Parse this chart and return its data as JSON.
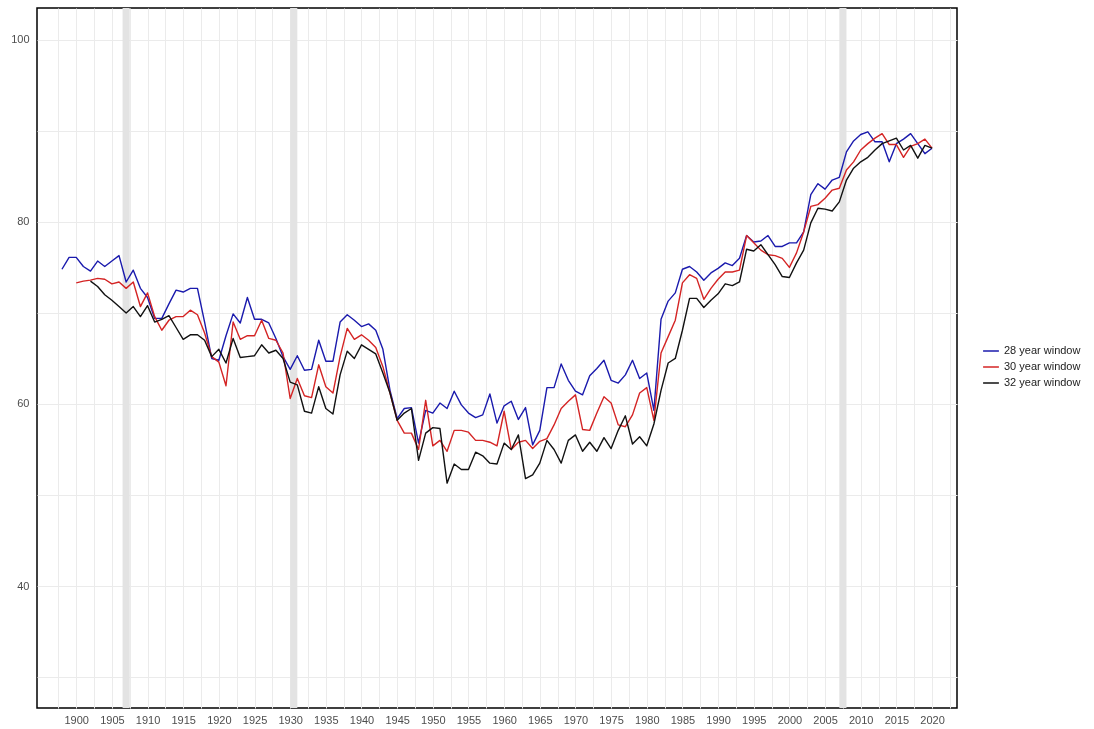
{
  "chart_data": {
    "type": "line",
    "x": [
      1898,
      1899,
      1900,
      1901,
      1902,
      1903,
      1904,
      1905,
      1906,
      1907,
      1908,
      1909,
      1910,
      1911,
      1912,
      1913,
      1914,
      1915,
      1916,
      1917,
      1918,
      1919,
      1920,
      1921,
      1922,
      1923,
      1924,
      1925,
      1926,
      1927,
      1928,
      1929,
      1930,
      1931,
      1932,
      1933,
      1934,
      1935,
      1936,
      1937,
      1938,
      1939,
      1940,
      1941,
      1942,
      1943,
      1944,
      1945,
      1946,
      1947,
      1948,
      1949,
      1950,
      1951,
      1952,
      1953,
      1954,
      1955,
      1956,
      1957,
      1958,
      1959,
      1960,
      1961,
      1962,
      1963,
      1964,
      1965,
      1966,
      1967,
      1968,
      1969,
      1970,
      1971,
      1972,
      1973,
      1974,
      1975,
      1976,
      1977,
      1978,
      1979,
      1980,
      1981,
      1982,
      1983,
      1984,
      1985,
      1986,
      1987,
      1988,
      1989,
      1990,
      1991,
      1992,
      1993,
      1994,
      1995,
      1996,
      1997,
      1998,
      1999,
      2000,
      2001,
      2002,
      2003,
      2004,
      2005,
      2006,
      2007,
      2008,
      2009,
      2010,
      2011,
      2012,
      2013,
      2014,
      2015,
      2016,
      2017,
      2018,
      2019,
      2020
    ],
    "series": [
      {
        "name": "28 year window",
        "color": "#1a1aad",
        "values": [
          74.8,
          76.1,
          76.1,
          75.1,
          74.6,
          75.7,
          75.1,
          75.7,
          76.3,
          73.4,
          74.7,
          72.7,
          71.7,
          69.4,
          69.4,
          71.0,
          72.5,
          72.3,
          72.7,
          72.7,
          69.0,
          65.0,
          64.8,
          67.5,
          69.9,
          68.9,
          71.7,
          69.3,
          69.3,
          68.9,
          67.2,
          65.2,
          63.8,
          65.3,
          63.7,
          63.8,
          67.0,
          64.7,
          64.7,
          69.0,
          69.8,
          69.2,
          68.5,
          68.8,
          68.1,
          66.0,
          61.5,
          58.4,
          59.5,
          59.6,
          55.7,
          59.3,
          59.0,
          60.1,
          59.5,
          61.4,
          59.9,
          59.0,
          58.5,
          58.8,
          61.1,
          57.9,
          59.8,
          60.3,
          58.3,
          59.6,
          55.5,
          57.1,
          61.8,
          61.8,
          64.4,
          62.6,
          61.4,
          61.0,
          63.1,
          63.9,
          64.8,
          62.6,
          62.3,
          63.2,
          64.8,
          62.8,
          63.4,
          59.3,
          69.3,
          71.3,
          72.2,
          74.8,
          75.1,
          74.5,
          73.6,
          74.4,
          74.9,
          75.5,
          75.2,
          76.0,
          78.5,
          77.8,
          77.9,
          78.5,
          77.3,
          77.3,
          77.7,
          77.7,
          78.9,
          83.0,
          84.2,
          83.6,
          84.6,
          84.9,
          87.7,
          88.9,
          89.6,
          89.9,
          88.8,
          88.8,
          86.6,
          88.6,
          89.1,
          89.7,
          88.6,
          87.5,
          88.1
        ]
      },
      {
        "name": "30 year window",
        "color": "#d42424",
        "values": [
          null,
          null,
          73.3,
          73.5,
          73.6,
          73.8,
          73.7,
          73.2,
          73.4,
          72.7,
          73.4,
          70.7,
          72.2,
          69.6,
          68.1,
          69.2,
          69.6,
          69.6,
          70.3,
          69.8,
          67.8,
          65.2,
          64.6,
          62.0,
          69.0,
          67.1,
          67.5,
          67.5,
          69.2,
          67.2,
          67.0,
          65.6,
          60.6,
          62.8,
          60.9,
          60.7,
          64.3,
          61.9,
          61.2,
          65.2,
          68.3,
          67.1,
          67.6,
          67.0,
          66.2,
          64.1,
          61.2,
          58.2,
          56.8,
          56.8,
          55.0,
          60.4,
          55.4,
          56.0,
          54.8,
          57.1,
          57.1,
          56.9,
          56.0,
          56.0,
          55.8,
          55.4,
          59.2,
          55.0,
          55.8,
          56.0,
          55.1,
          55.9,
          56.2,
          57.7,
          59.5,
          60.3,
          61.0,
          57.2,
          57.1,
          59.0,
          60.8,
          60.1,
          57.7,
          57.5,
          58.8,
          61.2,
          61.8,
          58.2,
          65.6,
          67.4,
          69.2,
          73.3,
          74.2,
          73.8,
          71.5,
          72.7,
          73.7,
          74.5,
          74.5,
          74.7,
          78.5,
          77.7,
          76.9,
          76.4,
          76.3,
          76.0,
          75.0,
          76.6,
          78.9,
          81.7,
          81.9,
          82.6,
          83.5,
          83.7,
          85.7,
          86.6,
          87.9,
          88.6,
          89.2,
          89.7,
          88.5,
          88.5,
          87.1,
          88.3,
          88.6,
          89.1,
          88.1
        ]
      },
      {
        "name": "32 year window",
        "color": "#111111",
        "values": [
          null,
          null,
          null,
          null,
          73.5,
          72.9,
          72.0,
          71.4,
          70.7,
          70.0,
          70.7,
          69.6,
          70.8,
          69.0,
          69.3,
          69.7,
          68.4,
          67.1,
          67.6,
          67.6,
          67.0,
          65.2,
          66.0,
          64.5,
          67.2,
          65.1,
          65.2,
          65.3,
          66.5,
          65.6,
          65.9,
          65.0,
          62.4,
          62.1,
          59.2,
          59.0,
          61.9,
          59.5,
          58.9,
          63.2,
          65.8,
          65.0,
          66.5,
          66.0,
          65.5,
          63.4,
          61.2,
          58.2,
          59.0,
          59.5,
          53.8,
          56.8,
          57.4,
          57.3,
          51.3,
          53.4,
          52.8,
          52.8,
          54.7,
          54.3,
          53.5,
          53.4,
          55.7,
          55.0,
          56.6,
          51.8,
          52.2,
          53.5,
          56.0,
          55.0,
          53.5,
          56.0,
          56.6,
          54.8,
          55.8,
          54.8,
          56.3,
          55.1,
          57.1,
          58.7,
          55.6,
          56.4,
          55.4,
          57.8,
          61.5,
          64.5,
          65.0,
          68.1,
          71.6,
          71.6,
          70.6,
          71.4,
          72.1,
          73.2,
          73.0,
          73.4,
          77.0,
          76.8,
          77.5,
          76.4,
          75.3,
          74.0,
          73.9,
          75.5,
          76.9,
          79.9,
          81.5,
          81.4,
          81.2,
          82.2,
          84.6,
          85.9,
          86.6,
          87.1,
          87.9,
          88.6,
          88.9,
          89.2,
          87.9,
          88.4,
          87.0,
          88.4,
          88.1
        ]
      }
    ],
    "xlim": [
      1894.5,
      2023.5
    ],
    "xticks": [
      {
        "value": 1897.5,
        "label": null
      },
      1900,
      {
        "value": 1902.5,
        "label": null
      },
      1905,
      {
        "value": 1907.5,
        "label": null
      },
      1910,
      {
        "value": 1912.5,
        "label": null
      },
      1915,
      {
        "value": 1917.5,
        "label": null
      },
      1920,
      {
        "value": 1922.5,
        "label": null
      },
      1925,
      {
        "value": 1927.5,
        "label": null
      },
      1930,
      {
        "value": 1932.5,
        "label": null
      },
      1935,
      {
        "value": 1937.5,
        "label": null
      },
      1940,
      {
        "value": 1942.5,
        "label": null
      },
      1945,
      {
        "value": 1947.5,
        "label": null
      },
      1950,
      {
        "value": 1952.5,
        "label": null
      },
      1955,
      {
        "value": 1957.5,
        "label": null
      },
      1960,
      {
        "value": 1962.5,
        "label": null
      },
      1965,
      {
        "value": 1967.5,
        "label": null
      },
      1970,
      {
        "value": 1972.5,
        "label": null
      },
      1975,
      {
        "value": 1977.5,
        "label": null
      },
      1980,
      {
        "value": 1982.5,
        "label": null
      },
      1985,
      {
        "value": 1987.5,
        "label": null
      },
      1990,
      {
        "value": 1992.5,
        "label": null
      },
      1995,
      {
        "value": 1997.5,
        "label": null
      },
      2000,
      {
        "value": 2002.5,
        "label": null
      },
      2005,
      {
        "value": 2007.5,
        "label": null
      },
      2010,
      {
        "value": 2012.5,
        "label": null
      },
      2015,
      {
        "value": 2017.5,
        "label": null
      },
      2020,
      {
        "value": 2022.5,
        "label": null
      }
    ],
    "ylim": [
      26.6,
      103.5
    ],
    "yticks": [
      {
        "value": 30,
        "label": null
      },
      40,
      {
        "value": 50,
        "label": null
      },
      60,
      {
        "value": 70,
        "label": null
      },
      80,
      {
        "value": 90,
        "label": null
      },
      100
    ],
    "bands": [
      {
        "axis": "x",
        "from": 1906.5,
        "to": 1907.5,
        "color": "#e3e3e3"
      },
      {
        "axis": "x",
        "from": 1930,
        "to": 1931,
        "color": "#e3e3e3"
      },
      {
        "axis": "x",
        "from": 2007,
        "to": 2008,
        "color": "#e3e3e3"
      }
    ],
    "grid": true,
    "legend": "right",
    "line_style": "solid",
    "marker": "none"
  }
}
